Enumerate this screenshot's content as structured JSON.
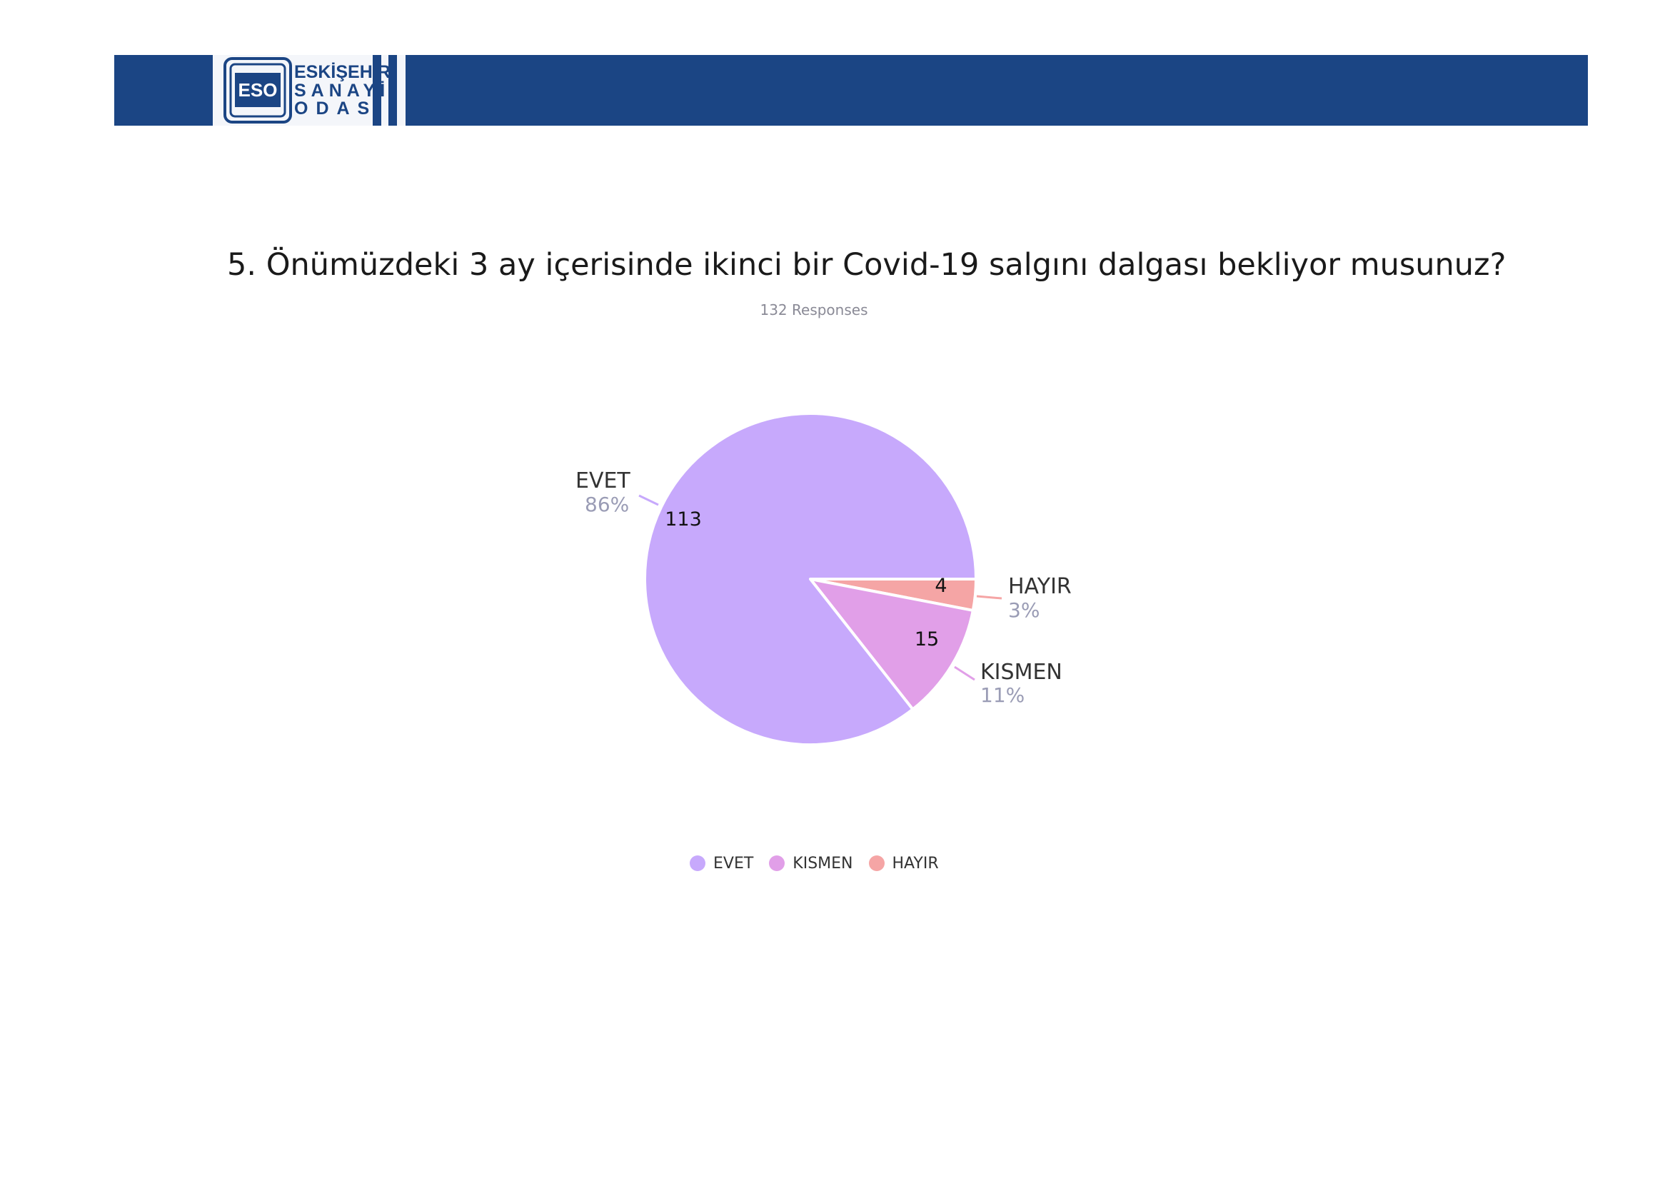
{
  "header": {
    "logo": {
      "emblem_text": "ESO",
      "line1": "ESKİŞEHİR",
      "line2": "SANAYİ",
      "line3": "ODASI"
    }
  },
  "colors": {
    "header_blue": "#1b4584",
    "evet": "#c7a9fc",
    "kismen": "#e19fe8",
    "hayir": "#f5a5a5"
  },
  "chart_data": {
    "type": "pie",
    "title": "5. Önümüzdeki 3 ay içerisinde ikinci bir Covid-19 salgını dalgası bekliyor musunuz?",
    "subtitle": "132 Responses",
    "slices": [
      {
        "label": "EVET",
        "value": 113,
        "percent": "86%"
      },
      {
        "label": "KISMEN",
        "value": 15,
        "percent": "11%"
      },
      {
        "label": "HAYIR",
        "value": 4,
        "percent": "3%"
      }
    ],
    "legend": [
      "EVET",
      "KISMEN",
      "HAYIR"
    ],
    "legend_position": "bottom"
  }
}
